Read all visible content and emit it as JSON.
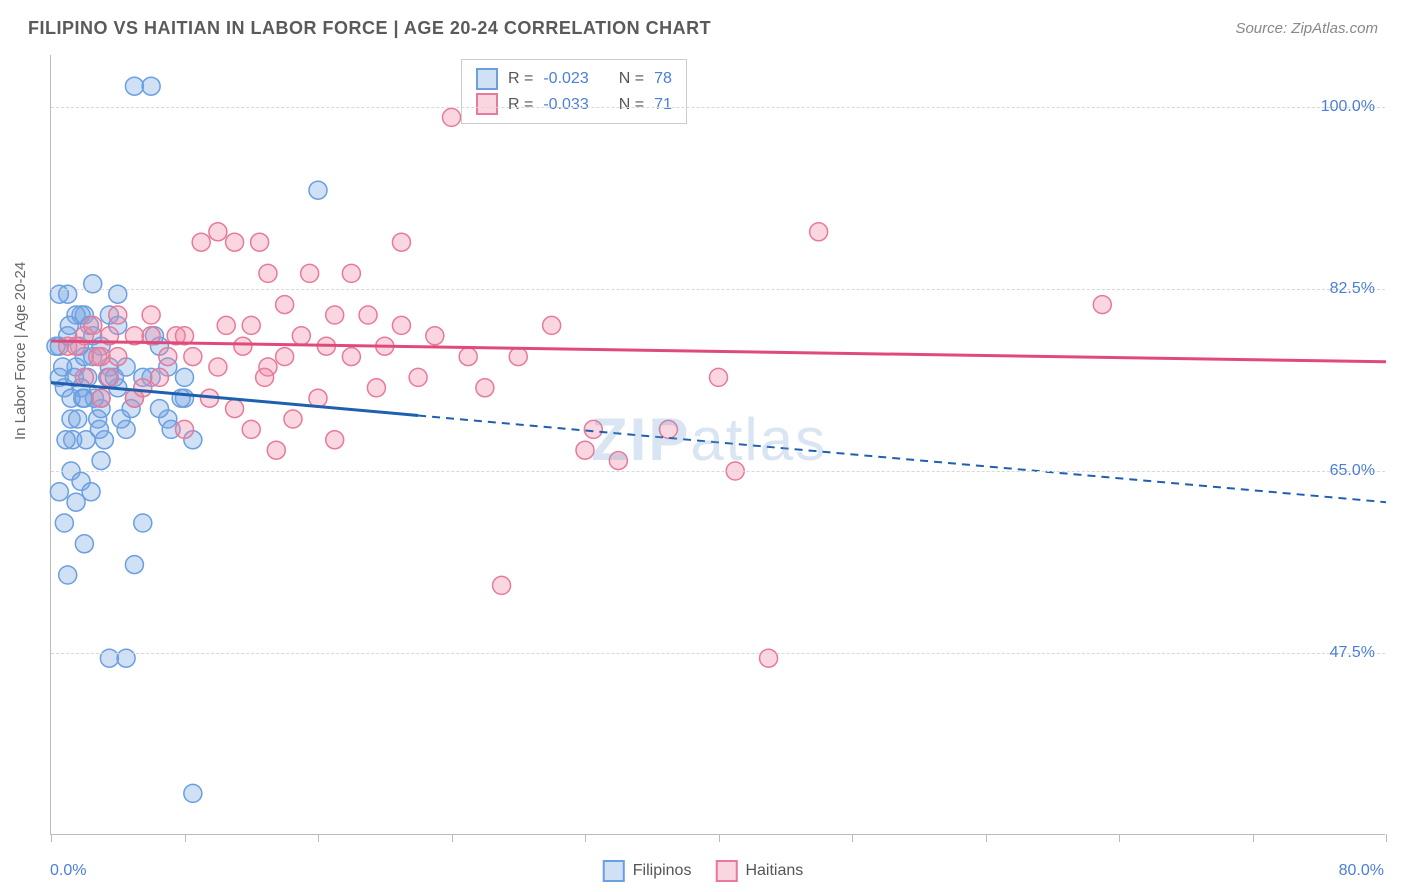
{
  "chart": {
    "title": "FILIPINO VS HAITIAN IN LABOR FORCE | AGE 20-24 CORRELATION CHART",
    "source": "Source: ZipAtlas.com",
    "ylabel": "In Labor Force | Age 20-24",
    "type": "scatter",
    "xlim": [
      0,
      80
    ],
    "ylim": [
      30,
      105
    ],
    "x_min_label": "0.0%",
    "x_max_label": "80.0%",
    "yticks": [
      47.5,
      65.0,
      82.5,
      100.0
    ],
    "ytick_labels": [
      "47.5%",
      "65.0%",
      "82.5%",
      "100.0%"
    ],
    "xtick_positions": [
      0,
      8,
      16,
      24,
      32,
      40,
      48,
      56,
      64,
      72,
      80
    ],
    "grid_color": "#d8d8d8",
    "background_color": "#ffffff",
    "axis_color": "#bbbbbb",
    "marker_radius": 9,
    "marker_stroke_width": 1.5,
    "watermark_text_bold": "ZIP",
    "watermark_text_light": "atlas",
    "watermark_color": "rgba(120,160,210,0.28)",
    "series": {
      "filipinos": {
        "label": "Filipinos",
        "fill_color": "rgba(120,165,225,0.35)",
        "stroke_color": "#6a9fe0",
        "R": "-0.023",
        "N": "78",
        "trend": {
          "y_start": 73.5,
          "y_end": 62.0,
          "solid_until_x": 22,
          "color": "#1f5fb0",
          "width": 3
        },
        "points": [
          [
            0.5,
            77
          ],
          [
            0.8,
            73
          ],
          [
            1.0,
            78
          ],
          [
            1.2,
            70
          ],
          [
            1.0,
            82
          ],
          [
            1.5,
            75
          ],
          [
            1.3,
            68
          ],
          [
            1.8,
            80
          ],
          [
            2.0,
            72
          ],
          [
            2.0,
            76
          ],
          [
            0.8,
            60
          ],
          [
            1.5,
            62
          ],
          [
            2.2,
            74
          ],
          [
            2.5,
            78
          ],
          [
            3.0,
            71
          ],
          [
            3.0,
            66
          ],
          [
            3.5,
            75
          ],
          [
            3.5,
            80
          ],
          [
            2.0,
            58
          ],
          [
            1.0,
            55
          ],
          [
            4.0,
            73
          ],
          [
            4.0,
            79
          ],
          [
            4.5,
            69
          ],
          [
            5.0,
            102
          ],
          [
            5.0,
            72
          ],
          [
            6.0,
            74
          ],
          [
            6.0,
            102
          ],
          [
            6.5,
            77
          ],
          [
            7.0,
            70
          ],
          [
            7.0,
            75
          ],
          [
            8.0,
            74
          ],
          [
            8.0,
            72
          ],
          [
            8.5,
            34
          ],
          [
            8.5,
            68
          ],
          [
            3.5,
            47
          ],
          [
            4.5,
            47
          ],
          [
            5.0,
            56
          ],
          [
            5.5,
            60
          ],
          [
            4.0,
            82
          ],
          [
            4.5,
            75
          ],
          [
            2.0,
            80
          ],
          [
            2.5,
            83
          ],
          [
            0.5,
            82
          ],
          [
            1.8,
            73
          ],
          [
            3.0,
            77
          ],
          [
            3.0,
            72
          ],
          [
            2.5,
            76
          ],
          [
            2.8,
            70
          ],
          [
            3.2,
            68
          ],
          [
            1.2,
            72
          ],
          [
            1.7,
            77
          ],
          [
            2.3,
            79
          ],
          [
            2.6,
            72
          ],
          [
            3.4,
            74
          ],
          [
            6.5,
            71
          ],
          [
            7.2,
            69
          ],
          [
            7.8,
            72
          ],
          [
            1.5,
            80
          ],
          [
            2.1,
            68
          ],
          [
            0.5,
            74
          ],
          [
            0.3,
            77
          ],
          [
            1.1,
            79
          ],
          [
            1.6,
            70
          ],
          [
            0.9,
            68
          ],
          [
            0.7,
            75
          ],
          [
            1.4,
            74
          ],
          [
            1.9,
            72
          ],
          [
            16.0,
            92
          ],
          [
            0.5,
            63
          ],
          [
            1.2,
            65
          ],
          [
            1.8,
            64
          ],
          [
            2.4,
            63
          ],
          [
            5.5,
            74
          ],
          [
            6.2,
            78
          ],
          [
            4.2,
            70
          ],
          [
            3.8,
            74
          ],
          [
            2.9,
            69
          ],
          [
            4.8,
            71
          ]
        ]
      },
      "haitians": {
        "label": "Haitians",
        "fill_color": "rgba(240,140,165,0.35)",
        "stroke_color": "#e77a9a",
        "R": "-0.033",
        "N": "71",
        "trend": {
          "y_start": 77.5,
          "y_end": 75.5,
          "solid_until_x": 80,
          "color": "#e04a7a",
          "width": 3
        },
        "points": [
          [
            1.0,
            77
          ],
          [
            2.0,
            78
          ],
          [
            3.0,
            76
          ],
          [
            3.5,
            74
          ],
          [
            4.0,
            80
          ],
          [
            5.0,
            72
          ],
          [
            6.0,
            78
          ],
          [
            7.0,
            76
          ],
          [
            8.0,
            69
          ],
          [
            8.5,
            76
          ],
          [
            9.0,
            87
          ],
          [
            10.0,
            75
          ],
          [
            10.0,
            88
          ],
          [
            11.0,
            87
          ],
          [
            12.0,
            69
          ],
          [
            12.0,
            79
          ],
          [
            12.5,
            87
          ],
          [
            13.0,
            75
          ],
          [
            13.0,
            84
          ],
          [
            14.0,
            76
          ],
          [
            14.5,
            70
          ],
          [
            15.0,
            78
          ],
          [
            15.5,
            84
          ],
          [
            16.0,
            72
          ],
          [
            17.0,
            80
          ],
          [
            17.0,
            68
          ],
          [
            18.0,
            84
          ],
          [
            18.0,
            76
          ],
          [
            19.0,
            80
          ],
          [
            19.5,
            73
          ],
          [
            20.0,
            77
          ],
          [
            21.0,
            87
          ],
          [
            21.0,
            79
          ],
          [
            22.0,
            74
          ],
          [
            23.0,
            78
          ],
          [
            24.0,
            99
          ],
          [
            25.0,
            76
          ],
          [
            26.0,
            73
          ],
          [
            27.0,
            54
          ],
          [
            28.0,
            76
          ],
          [
            30.0,
            79
          ],
          [
            32.0,
            67
          ],
          [
            32.5,
            69
          ],
          [
            34.0,
            66
          ],
          [
            37.0,
            69
          ],
          [
            40.0,
            74
          ],
          [
            41.0,
            65
          ],
          [
            43.0,
            47
          ],
          [
            46.0,
            88
          ],
          [
            63.0,
            81
          ],
          [
            1.5,
            77
          ],
          [
            2.5,
            79
          ],
          [
            3.0,
            72
          ],
          [
            2.0,
            74
          ],
          [
            4.0,
            76
          ],
          [
            5.0,
            78
          ],
          [
            5.5,
            73
          ],
          [
            6.5,
            74
          ],
          [
            7.5,
            78
          ],
          [
            8.0,
            78
          ],
          [
            9.5,
            72
          ],
          [
            10.5,
            79
          ],
          [
            11.5,
            77
          ],
          [
            11.0,
            71
          ],
          [
            12.8,
            74
          ],
          [
            14.0,
            81
          ],
          [
            16.5,
            77
          ],
          [
            13.5,
            67
          ],
          [
            3.5,
            78
          ],
          [
            2.8,
            76
          ],
          [
            6.0,
            80
          ]
        ]
      }
    },
    "legend_stats": {
      "R_label": "R =",
      "N_label": "N =",
      "value_color": "#4a7fd8"
    }
  }
}
